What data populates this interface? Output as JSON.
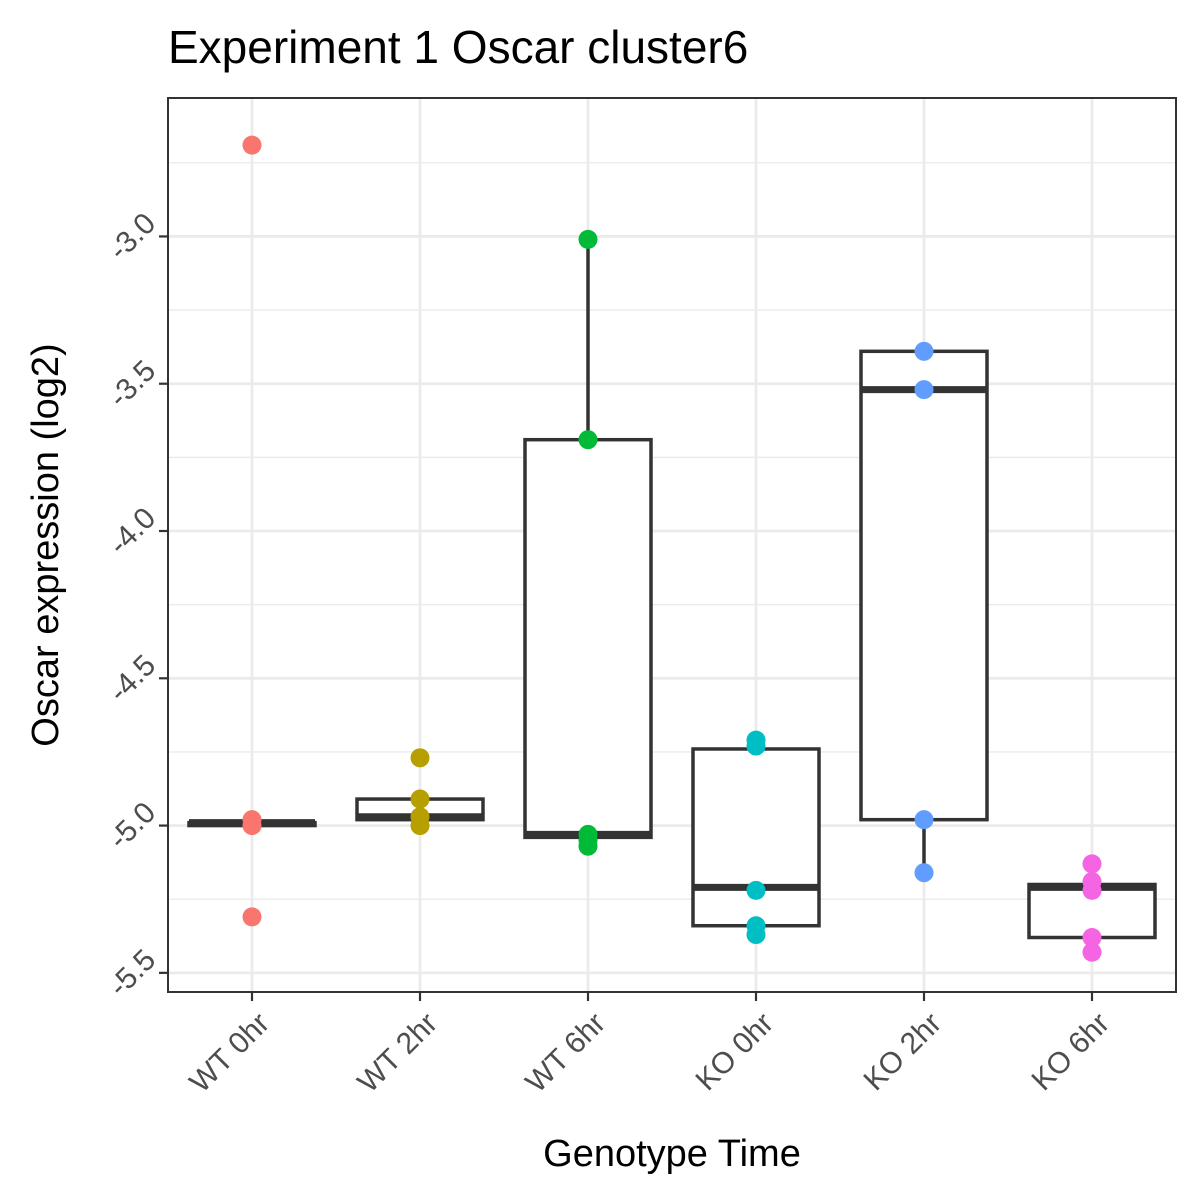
{
  "chart_data": {
    "type": "box",
    "title": "Experiment 1 Oscar cluster6",
    "xlabel": "Genotype Time",
    "ylabel": "Oscar expression (log2)",
    "ylim": [
      -5.565,
      -2.53
    ],
    "yticks": [
      "-3.0",
      "-3.5",
      "-4.0",
      "-4.5",
      "-5.0",
      "-5.5"
    ],
    "ytick_values": [
      -3.0,
      -3.5,
      -4.0,
      -4.5,
      -5.0,
      -5.5
    ],
    "grid": true,
    "legend": "none",
    "categories": [
      "WT 0hr",
      "WT 2hr",
      "WT 6hr",
      "KO 0hr",
      "KO 2hr",
      "KO 6hr"
    ],
    "colors": [
      "#F8766D",
      "#B79F00",
      "#00BA38",
      "#00BFC4",
      "#619CFF",
      "#F564E3"
    ],
    "boxes": [
      {
        "q1": -5.0,
        "median": -4.99,
        "q3": -4.99,
        "whisker_low": -5.0,
        "whisker_high": -4.99
      },
      {
        "q1": -4.98,
        "median": -4.97,
        "q3": -4.91,
        "whisker_low": -4.98,
        "whisker_high": -4.91
      },
      {
        "q1": -5.04,
        "median": -5.03,
        "q3": -3.69,
        "whisker_low": -5.04,
        "whisker_high": -3.01
      },
      {
        "q1": -5.34,
        "median": -5.21,
        "q3": -4.74,
        "whisker_low": -5.34,
        "whisker_high": -4.74
      },
      {
        "q1": -4.98,
        "median": -3.52,
        "q3": -3.39,
        "whisker_low": -5.16,
        "whisker_high": -3.39
      },
      {
        "q1": -5.38,
        "median": -5.21,
        "q3": -5.2,
        "whisker_low": -5.38,
        "whisker_high": -5.2
      }
    ],
    "points": [
      [
        -2.69,
        -4.98,
        -5.0,
        -5.31
      ],
      [
        -4.77,
        -4.91,
        -4.97,
        -5.0
      ],
      [
        -3.01,
        -3.69,
        -5.03,
        -5.05,
        -5.07
      ],
      [
        -4.71,
        -4.73,
        -5.22,
        -5.34,
        -5.37
      ],
      [
        -3.39,
        -3.52,
        -4.98,
        -5.16
      ],
      [
        -5.13,
        -5.19,
        -5.22,
        -5.38,
        -5.43
      ]
    ]
  }
}
